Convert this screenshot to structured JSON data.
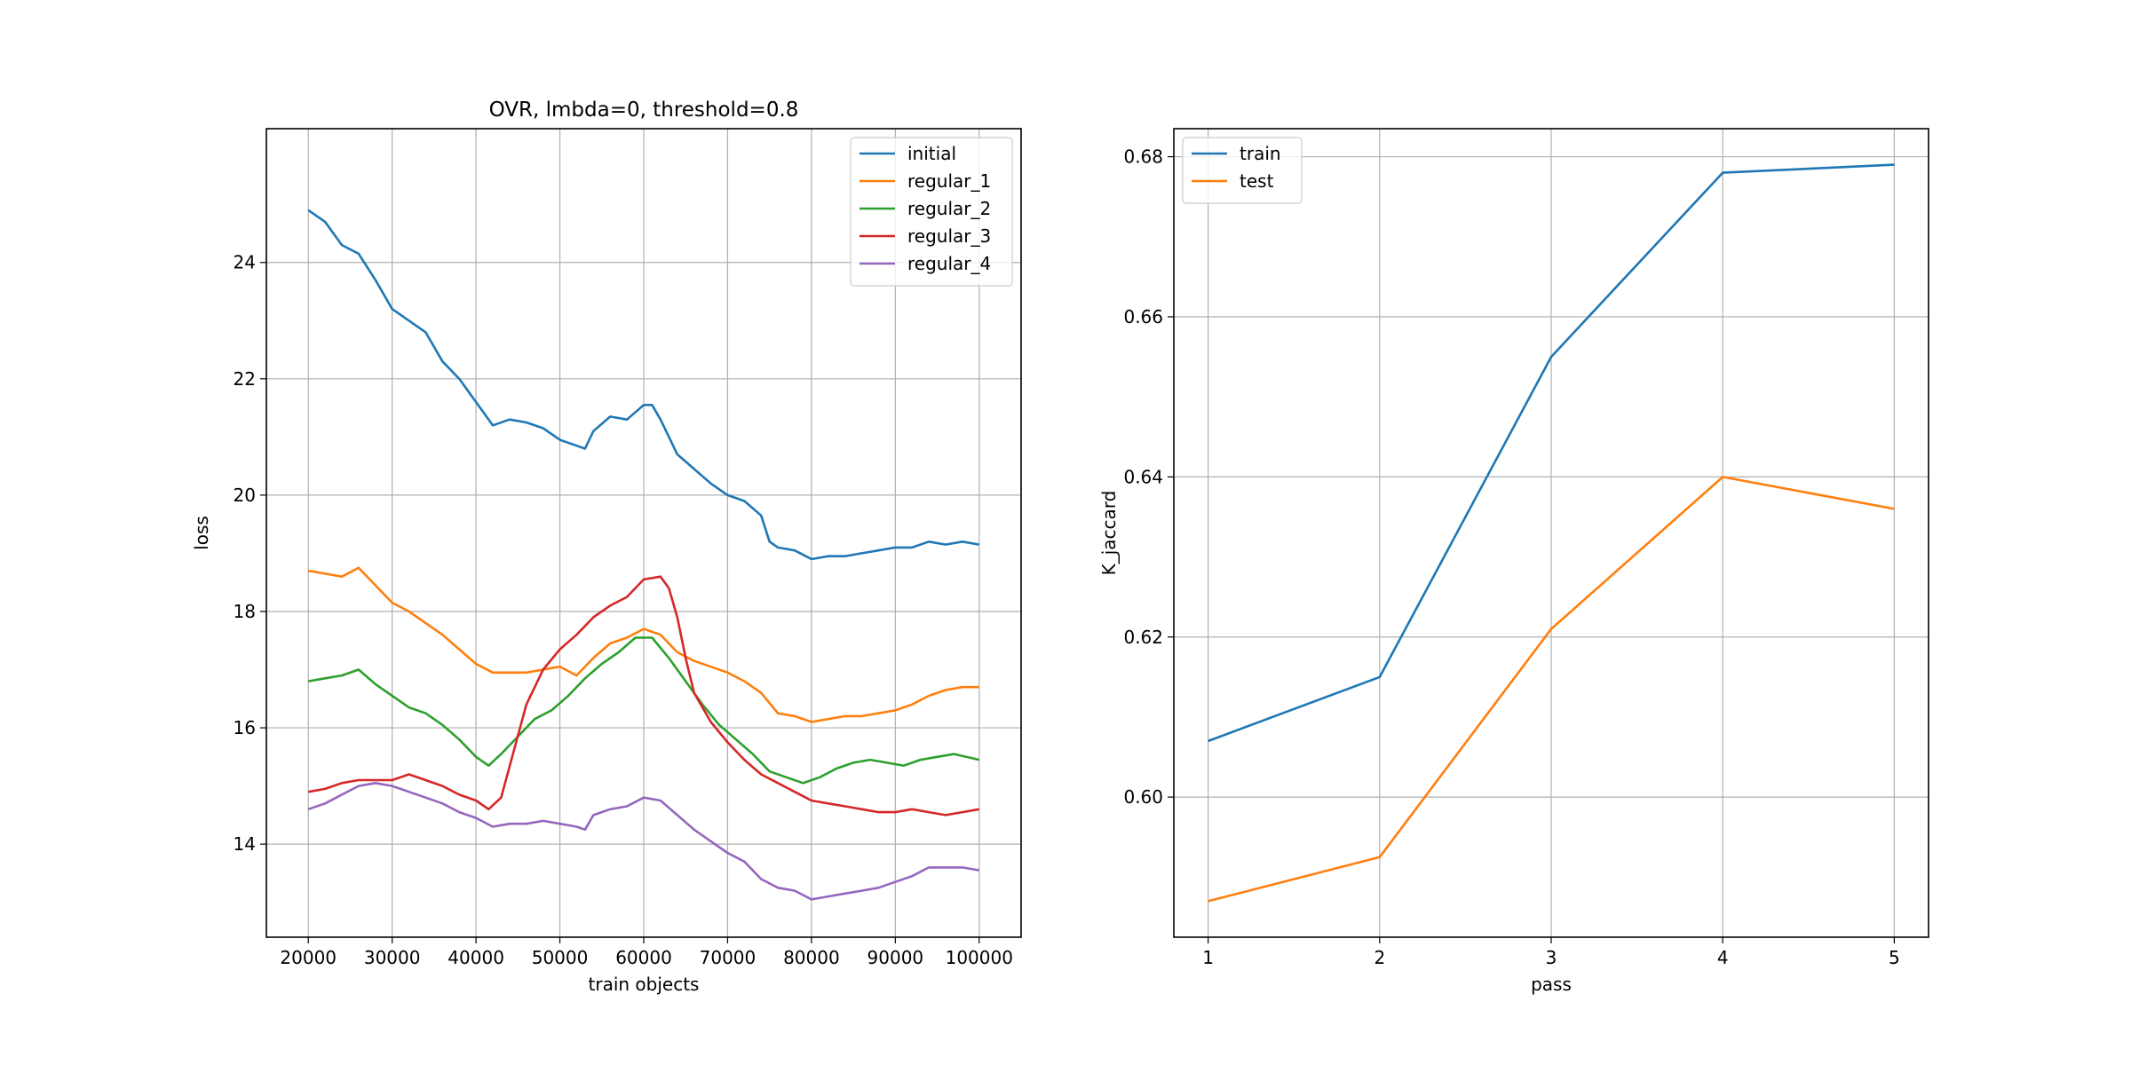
{
  "chart_data": [
    {
      "type": "line",
      "title": "OVR, lmbda=0, threshold=0.8",
      "xlabel": "train objects",
      "ylabel": "loss",
      "xlim": [
        15000,
        105000
      ],
      "ylim": [
        12.4,
        26.3
      ],
      "xticks": [
        20000,
        30000,
        40000,
        50000,
        60000,
        70000,
        80000,
        90000,
        100000
      ],
      "yticks": [
        14,
        16,
        18,
        20,
        22,
        24
      ],
      "grid": true,
      "legend_position": "top-right",
      "series": [
        {
          "name": "initial",
          "color": "#1f77b4",
          "x": [
            20000,
            22000,
            24000,
            26000,
            28000,
            30000,
            32000,
            34000,
            36000,
            38000,
            40000,
            42000,
            44000,
            46000,
            48000,
            50000,
            52000,
            53000,
            54000,
            56000,
            58000,
            60000,
            61000,
            62000,
            64000,
            66000,
            68000,
            70000,
            72000,
            74000,
            75000,
            76000,
            78000,
            80000,
            82000,
            84000,
            86000,
            88000,
            90000,
            92000,
            94000,
            96000,
            98000,
            100000
          ],
          "y": [
            24.9,
            24.7,
            24.3,
            24.15,
            23.7,
            23.2,
            23.0,
            22.8,
            22.3,
            22.0,
            21.6,
            21.2,
            21.3,
            21.25,
            21.15,
            20.95,
            20.85,
            20.8,
            21.1,
            21.35,
            21.3,
            21.55,
            21.55,
            21.3,
            20.7,
            20.45,
            20.2,
            20.0,
            19.9,
            19.65,
            19.2,
            19.1,
            19.05,
            18.9,
            18.95,
            18.95,
            19.0,
            19.05,
            19.1,
            19.1,
            19.2,
            19.15,
            19.2,
            19.15
          ]
        },
        {
          "name": "regular_1",
          "color": "#ff7f0e",
          "x": [
            20000,
            22000,
            24000,
            26000,
            28000,
            30000,
            32000,
            34000,
            36000,
            38000,
            40000,
            42000,
            44000,
            46000,
            48000,
            50000,
            52000,
            54000,
            56000,
            58000,
            60000,
            62000,
            64000,
            66000,
            68000,
            70000,
            72000,
            74000,
            76000,
            78000,
            80000,
            82000,
            84000,
            86000,
            88000,
            90000,
            92000,
            94000,
            96000,
            98000,
            100000
          ],
          "y": [
            18.7,
            18.65,
            18.6,
            18.75,
            18.45,
            18.15,
            18.0,
            17.8,
            17.6,
            17.35,
            17.1,
            16.95,
            16.95,
            16.95,
            17.0,
            17.05,
            16.9,
            17.2,
            17.45,
            17.55,
            17.7,
            17.6,
            17.3,
            17.15,
            17.05,
            16.95,
            16.8,
            16.6,
            16.25,
            16.2,
            16.1,
            16.15,
            16.2,
            16.2,
            16.25,
            16.3,
            16.4,
            16.55,
            16.65,
            16.7,
            16.7
          ]
        },
        {
          "name": "regular_2",
          "color": "#2ca02c",
          "x": [
            20000,
            22000,
            24000,
            26000,
            28000,
            30000,
            32000,
            34000,
            36000,
            38000,
            40000,
            41500,
            43000,
            45000,
            47000,
            49000,
            51000,
            53000,
            55000,
            57000,
            59000,
            61000,
            63000,
            65000,
            67000,
            69000,
            71000,
            73000,
            75000,
            77000,
            79000,
            81000,
            83000,
            85000,
            87000,
            89000,
            91000,
            93000,
            95000,
            97000,
            100000
          ],
          "y": [
            16.8,
            16.85,
            16.9,
            17.0,
            16.75,
            16.55,
            16.35,
            16.25,
            16.05,
            15.8,
            15.5,
            15.35,
            15.55,
            15.85,
            16.15,
            16.3,
            16.55,
            16.85,
            17.1,
            17.3,
            17.55,
            17.55,
            17.2,
            16.8,
            16.4,
            16.05,
            15.8,
            15.55,
            15.25,
            15.15,
            15.05,
            15.15,
            15.3,
            15.4,
            15.45,
            15.4,
            15.35,
            15.45,
            15.5,
            15.55,
            15.45
          ]
        },
        {
          "name": "regular_3",
          "color": "#d62728",
          "x": [
            20000,
            22000,
            24000,
            26000,
            28000,
            30000,
            32000,
            34000,
            36000,
            38000,
            40000,
            41500,
            43000,
            44500,
            46000,
            48000,
            50000,
            52000,
            54000,
            56000,
            58000,
            60000,
            62000,
            63000,
            64000,
            65000,
            66000,
            68000,
            70000,
            72000,
            74000,
            76000,
            78000,
            80000,
            82000,
            84000,
            86000,
            88000,
            90000,
            92000,
            94000,
            96000,
            98000,
            100000
          ],
          "y": [
            14.9,
            14.95,
            15.05,
            15.1,
            15.1,
            15.1,
            15.2,
            15.1,
            15.0,
            14.85,
            14.75,
            14.6,
            14.8,
            15.6,
            16.4,
            17.0,
            17.35,
            17.6,
            17.9,
            18.1,
            18.25,
            18.55,
            18.6,
            18.4,
            17.9,
            17.2,
            16.6,
            16.1,
            15.75,
            15.45,
            15.2,
            15.05,
            14.9,
            14.75,
            14.7,
            14.65,
            14.6,
            14.55,
            14.55,
            14.6,
            14.55,
            14.5,
            14.55,
            14.6
          ]
        },
        {
          "name": "regular_4",
          "color": "#9467bd",
          "x": [
            20000,
            22000,
            24000,
            26000,
            28000,
            30000,
            32000,
            34000,
            36000,
            38000,
            40000,
            42000,
            44000,
            46000,
            48000,
            50000,
            52000,
            53000,
            54000,
            56000,
            58000,
            60000,
            62000,
            64000,
            66000,
            68000,
            70000,
            72000,
            74000,
            76000,
            78000,
            80000,
            82000,
            84000,
            86000,
            88000,
            90000,
            92000,
            94000,
            96000,
            98000,
            100000
          ],
          "y": [
            14.6,
            14.7,
            14.85,
            15.0,
            15.05,
            15.0,
            14.9,
            14.8,
            14.7,
            14.55,
            14.45,
            14.3,
            14.35,
            14.35,
            14.4,
            14.35,
            14.3,
            14.25,
            14.5,
            14.6,
            14.65,
            14.8,
            14.75,
            14.5,
            14.25,
            14.05,
            13.85,
            13.7,
            13.4,
            13.25,
            13.2,
            13.05,
            13.1,
            13.15,
            13.2,
            13.25,
            13.35,
            13.45,
            13.6,
            13.6,
            13.6,
            13.55
          ]
        }
      ]
    },
    {
      "type": "line",
      "title": "",
      "xlabel": "pass",
      "ylabel": "K_jaccard",
      "xlim": [
        0.8,
        5.2
      ],
      "ylim": [
        0.5825,
        0.6835
      ],
      "xticks": [
        1,
        2,
        3,
        4,
        5
      ],
      "yticks": [
        "0.60",
        "0.62",
        "0.64",
        "0.66",
        "0.68"
      ],
      "grid": true,
      "legend_position": "top-left",
      "series": [
        {
          "name": "train",
          "color": "#1f77b4",
          "x": [
            1,
            2,
            3,
            4,
            5
          ],
          "y": [
            0.607,
            0.615,
            0.655,
            0.678,
            0.679
          ]
        },
        {
          "name": "test",
          "color": "#ff7f0e",
          "x": [
            1,
            2,
            3,
            4,
            5
          ],
          "y": [
            0.587,
            0.5925,
            0.621,
            0.64,
            0.636
          ]
        }
      ]
    }
  ]
}
